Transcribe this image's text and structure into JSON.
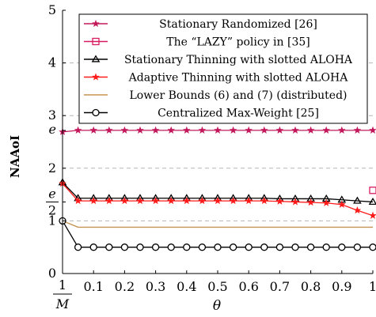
{
  "chart_data": {
    "type": "line",
    "xlabel": "θ",
    "ylabel": "NAAoI",
    "xlim": [
      0.0,
      1.0
    ],
    "ylim": [
      0,
      5
    ],
    "x_ticks": [
      {
        "v": 0.0,
        "label": "1/M",
        "kind": "frac",
        "num": "1",
        "den": "M"
      },
      {
        "v": 0.1,
        "label": "0.1"
      },
      {
        "v": 0.2,
        "label": "0.2"
      },
      {
        "v": 0.3,
        "label": "0.3"
      },
      {
        "v": 0.4,
        "label": "0.4"
      },
      {
        "v": 0.5,
        "label": "0.5"
      },
      {
        "v": 0.6,
        "label": "0.6"
      },
      {
        "v": 0.7,
        "label": "0.7"
      },
      {
        "v": 0.8,
        "label": "0.8"
      },
      {
        "v": 0.9,
        "label": "0.9"
      },
      {
        "v": 1.0,
        "label": "1"
      }
    ],
    "y_ticks": [
      {
        "v": 0,
        "label": "0"
      },
      {
        "v": 1,
        "label": "1"
      },
      {
        "v": 1.359,
        "label": "e/2",
        "kind": "frac",
        "num": "e",
        "den": "2"
      },
      {
        "v": 2,
        "label": "2"
      },
      {
        "v": 2.718,
        "label": "e",
        "kind": "italic"
      },
      {
        "v": 3,
        "label": "3"
      },
      {
        "v": 4,
        "label": "4"
      },
      {
        "v": 5,
        "label": "5"
      }
    ],
    "grid": "horizontal-dashed",
    "legend_position": "top",
    "series": [
      {
        "name": "Stationary Randomized [26]",
        "color": "#c2185b",
        "marker": "star",
        "x": [
          0.0,
          0.05,
          0.1,
          0.15,
          0.2,
          0.25,
          0.3,
          0.35,
          0.4,
          0.45,
          0.5,
          0.55,
          0.6,
          0.65,
          0.7,
          0.75,
          0.8,
          0.85,
          0.9,
          0.95,
          1.0
        ],
        "y": [
          2.69,
          2.72,
          2.72,
          2.72,
          2.72,
          2.72,
          2.72,
          2.72,
          2.72,
          2.72,
          2.72,
          2.72,
          2.72,
          2.72,
          2.72,
          2.72,
          2.72,
          2.72,
          2.72,
          2.72,
          2.72
        ]
      },
      {
        "name": "The “LAZY” policy in [35]",
        "color": "#d81b60",
        "marker": "square",
        "x": [
          1.0
        ],
        "y": [
          1.58
        ]
      },
      {
        "name": "Stationary Thinning with slotted ALOHA",
        "color": "#000000",
        "marker": "triangle",
        "x": [
          0.0,
          0.05,
          0.1,
          0.15,
          0.2,
          0.25,
          0.3,
          0.35,
          0.4,
          0.45,
          0.5,
          0.55,
          0.6,
          0.65,
          0.7,
          0.75,
          0.8,
          0.85,
          0.9,
          0.95,
          1.0
        ],
        "y": [
          1.73,
          1.43,
          1.43,
          1.43,
          1.43,
          1.43,
          1.43,
          1.43,
          1.43,
          1.43,
          1.43,
          1.43,
          1.43,
          1.43,
          1.42,
          1.42,
          1.42,
          1.42,
          1.4,
          1.38,
          1.36
        ]
      },
      {
        "name": "Adaptive Thinning with slotted ALOHA",
        "color": "#ff1a1a",
        "marker": "star",
        "x": [
          0.0,
          0.05,
          0.1,
          0.15,
          0.2,
          0.25,
          0.3,
          0.35,
          0.4,
          0.45,
          0.5,
          0.55,
          0.6,
          0.65,
          0.7,
          0.75,
          0.8,
          0.85,
          0.9,
          0.95,
          1.0
        ],
        "y": [
          1.71,
          1.38,
          1.38,
          1.38,
          1.38,
          1.38,
          1.38,
          1.38,
          1.38,
          1.38,
          1.38,
          1.38,
          1.38,
          1.38,
          1.37,
          1.36,
          1.35,
          1.34,
          1.31,
          1.2,
          1.1
        ]
      },
      {
        "name": "Lower Bounds (6) and (7) (distributed)",
        "color": "#c69352",
        "marker": "none",
        "x": [
          0.0,
          0.05,
          0.1,
          0.2,
          0.3,
          0.4,
          0.5,
          0.6,
          0.7,
          0.8,
          0.9,
          1.0
        ],
        "y": [
          1.0,
          0.88,
          0.88,
          0.88,
          0.88,
          0.88,
          0.88,
          0.88,
          0.88,
          0.88,
          0.88,
          0.88
        ]
      },
      {
        "name": "Centralized Max-Weight [25]",
        "color": "#000000",
        "marker": "circle",
        "x": [
          0.0,
          0.05,
          0.1,
          0.15,
          0.2,
          0.25,
          0.3,
          0.35,
          0.4,
          0.45,
          0.5,
          0.55,
          0.6,
          0.65,
          0.7,
          0.75,
          0.8,
          0.85,
          0.9,
          0.95,
          1.0
        ],
        "y": [
          1.0,
          0.5,
          0.5,
          0.5,
          0.5,
          0.5,
          0.5,
          0.5,
          0.5,
          0.5,
          0.5,
          0.5,
          0.5,
          0.5,
          0.5,
          0.5,
          0.5,
          0.5,
          0.5,
          0.5,
          0.5
        ]
      }
    ]
  }
}
